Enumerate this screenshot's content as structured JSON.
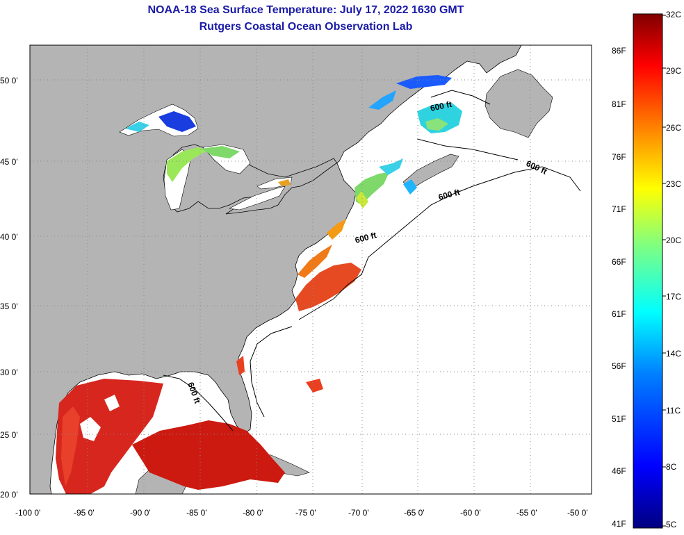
{
  "title": "NOAA-18 Sea Surface Temperature:  July 17, 2022 1630 GMT",
  "subtitle": "Rutgers Coastal Ocean Observation Lab",
  "lat_labels": [
    "50 0'",
    "45 0'",
    "40 0'",
    "35 0'",
    "30 0'",
    "25 0'",
    "20 0'"
  ],
  "lon_labels": [
    "-100 0'",
    "-95 0'",
    "-90 0'",
    "-85 0'",
    "-80 0'",
    "-75 0'",
    "-70 0'",
    "-65 0'",
    "-60 0'",
    "-55 0'",
    "-50 0'"
  ],
  "contour_labels": [
    "600 ft",
    "600 ft",
    "600 ft",
    "600 ft",
    "600 ft"
  ],
  "colorbar": {
    "fahrenheit": [
      "86F",
      "81F",
      "76F",
      "71F",
      "66F",
      "61F",
      "56F",
      "51F",
      "46F",
      "41F"
    ],
    "celsius": [
      "32C",
      "29C",
      "26C",
      "23C",
      "20C",
      "17C",
      "14C",
      "11C",
      "8C",
      "5C"
    ],
    "colors": [
      "#000080",
      "#0000ff",
      "#0080ff",
      "#00ffff",
      "#80ff80",
      "#ffff00",
      "#ff8000",
      "#ff0000",
      "#800000"
    ]
  },
  "colors": {
    "land": "#b4b4b4",
    "ocean": "#ffffff",
    "title": "#1a1aa8"
  }
}
